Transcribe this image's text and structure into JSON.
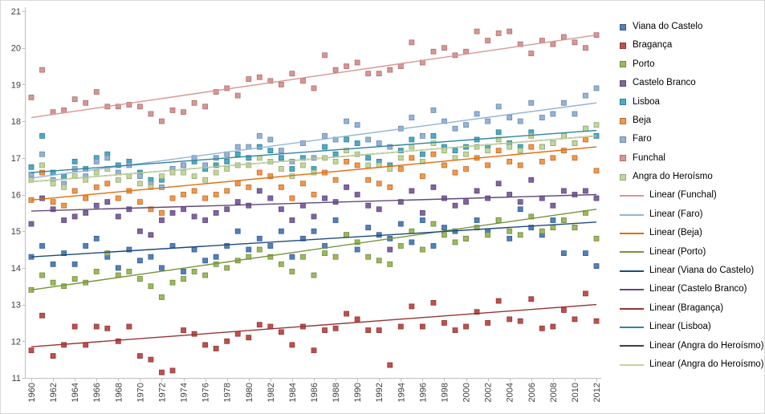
{
  "chart_data": {
    "type": "scatter",
    "title": "",
    "xlabel": "",
    "ylabel": "",
    "grid": false,
    "legend_position": "right",
    "axis_color": "#BFBFBF",
    "axis_label_color": "#404040",
    "x_axis": {
      "min": 1960,
      "max": 2012,
      "tick_step": 2,
      "ticks": [
        1960,
        1962,
        1964,
        1966,
        1968,
        1970,
        1972,
        1974,
        1976,
        1978,
        1980,
        1982,
        1984,
        1986,
        1988,
        1990,
        1992,
        1994,
        1996,
        1998,
        2000,
        2002,
        2004,
        2006,
        2008,
        2010,
        2012
      ]
    },
    "y_axis": {
      "min": 11,
      "max": 21,
      "tick_step": 1,
      "ticks": [
        11,
        12,
        13,
        14,
        15,
        16,
        17,
        18,
        19,
        20,
        21
      ]
    },
    "years": [
      1960,
      1961,
      1962,
      1963,
      1964,
      1965,
      1966,
      1967,
      1968,
      1969,
      1970,
      1971,
      1972,
      1973,
      1974,
      1975,
      1976,
      1977,
      1978,
      1979,
      1980,
      1981,
      1982,
      1983,
      1984,
      1985,
      1986,
      1987,
      1988,
      1989,
      1990,
      1991,
      1992,
      1993,
      1994,
      1995,
      1996,
      1997,
      1998,
      1999,
      2000,
      2001,
      2002,
      2003,
      2004,
      2005,
      2006,
      2007,
      2008,
      2009,
      2010,
      2011,
      2012
    ],
    "series": [
      {
        "name": "Viana do Castelo",
        "fill": "#4F81BD",
        "border": "#385D8A",
        "values": [
          14.3,
          14.6,
          14.1,
          14.4,
          14.1,
          14.6,
          14.8,
          14.3,
          14.0,
          14.5,
          14.2,
          14.3,
          14.0,
          14.6,
          13.9,
          14.5,
          14.2,
          14.3,
          14.6,
          15.0,
          14.5,
          14.8,
          14.6,
          15.0,
          14.3,
          14.8,
          15.0,
          14.6,
          15.3,
          14.9,
          14.5,
          15.1,
          14.9,
          14.8,
          15.2,
          14.7,
          15.3,
          14.6,
          15.1,
          15.0,
          14.8,
          15.3,
          15.0,
          15.3,
          14.8,
          15.6,
          15.1,
          14.9,
          15.3,
          14.4,
          15.1,
          14.4,
          14.05
        ]
      },
      {
        "name": "Bragança",
        "fill": "#C0504D",
        "border": "#8C3836",
        "values": [
          11.75,
          12.7,
          11.6,
          11.9,
          12.4,
          11.9,
          12.4,
          12.35,
          12.0,
          12.4,
          11.6,
          11.5,
          11.15,
          11.2,
          12.3,
          12.2,
          11.9,
          11.8,
          12.0,
          12.2,
          12.1,
          12.45,
          12.4,
          12.25,
          11.9,
          12.4,
          11.75,
          12.3,
          12.35,
          12.75,
          12.6,
          12.3,
          12.3,
          11.35,
          12.4,
          12.95,
          12.4,
          13.05,
          12.5,
          12.3,
          12.4,
          12.8,
          12.5,
          13.1,
          12.6,
          12.55,
          13.15,
          12.35,
          12.4,
          12.85,
          12.6,
          13.3,
          12.55
        ]
      },
      {
        "name": "Porto",
        "fill": "#9BBB59",
        "border": "#71893F",
        "values": [
          13.4,
          13.8,
          13.6,
          13.5,
          13.7,
          13.6,
          13.9,
          14.4,
          13.8,
          13.9,
          13.7,
          13.5,
          13.2,
          13.6,
          13.7,
          13.9,
          13.8,
          14.1,
          14.0,
          14.2,
          14.3,
          14.5,
          14.3,
          14.1,
          13.9,
          14.3,
          13.8,
          14.4,
          14.3,
          14.9,
          14.7,
          14.3,
          14.2,
          14.1,
          14.6,
          15.0,
          14.5,
          15.2,
          14.9,
          14.7,
          14.8,
          15.1,
          14.9,
          15.3,
          15.0,
          14.9,
          15.4,
          15.0,
          15.1,
          15.3,
          15.1,
          15.5,
          14.8
        ]
      },
      {
        "name": "Castelo Branco",
        "fill": "#8064A2",
        "border": "#5C4776",
        "values": [
          15.2,
          15.9,
          15.6,
          15.3,
          15.4,
          15.5,
          15.7,
          15.8,
          15.4,
          15.6,
          15.0,
          14.9,
          15.3,
          15.5,
          15.6,
          15.4,
          15.3,
          15.5,
          15.6,
          15.8,
          15.7,
          16.1,
          15.9,
          15.6,
          15.3,
          15.7,
          15.4,
          15.9,
          15.8,
          16.2,
          16.0,
          15.7,
          15.6,
          14.5,
          15.8,
          16.1,
          15.5,
          16.2,
          15.9,
          15.7,
          15.8,
          16.1,
          15.9,
          16.3,
          16.0,
          15.8,
          16.4,
          15.9,
          15.7,
          16.1,
          16.0,
          16.1,
          15.9
        ]
      },
      {
        "name": "Lisboa",
        "fill": "#4BACC6",
        "border": "#357D91",
        "values": [
          16.75,
          17.6,
          16.6,
          16.5,
          16.9,
          16.7,
          17.0,
          17.1,
          16.8,
          16.9,
          16.6,
          16.4,
          16.4,
          16.7,
          16.8,
          16.9,
          16.7,
          16.8,
          16.9,
          17.1,
          17.0,
          17.3,
          17.2,
          17.0,
          16.7,
          17.0,
          16.7,
          17.3,
          17.1,
          17.5,
          17.4,
          17.0,
          16.9,
          16.8,
          17.2,
          17.5,
          17.1,
          17.6,
          17.3,
          17.2,
          17.3,
          17.5,
          17.3,
          17.7,
          17.4,
          17.3,
          17.7,
          17.3,
          17.4,
          17.6,
          17.4,
          17.8,
          17.6
        ]
      },
      {
        "name": "Beja",
        "fill": "#F79646",
        "border": "#B66D31",
        "values": [
          15.85,
          16.6,
          15.8,
          15.7,
          16.1,
          15.9,
          16.2,
          16.3,
          15.9,
          16.1,
          15.8,
          15.6,
          15.5,
          15.9,
          16.0,
          16.1,
          15.9,
          16.0,
          16.1,
          16.3,
          16.2,
          16.6,
          16.5,
          16.2,
          15.9,
          16.3,
          16.0,
          16.6,
          16.4,
          16.9,
          16.8,
          16.4,
          16.3,
          16.2,
          16.7,
          17.0,
          16.5,
          17.1,
          16.8,
          16.6,
          16.7,
          17.0,
          16.8,
          17.2,
          16.9,
          16.8,
          17.3,
          16.9,
          17.0,
          17.2,
          17.0,
          17.5,
          16.65
        ]
      },
      {
        "name": "Faro",
        "fill": "#95B3D7",
        "border": "#6A88A8",
        "values": [
          16.55,
          17.1,
          16.4,
          16.3,
          16.7,
          16.5,
          16.9,
          17.0,
          16.6,
          16.8,
          16.5,
          16.3,
          16.2,
          16.7,
          16.8,
          17.0,
          16.8,
          17.0,
          17.1,
          17.3,
          17.3,
          17.6,
          17.5,
          17.2,
          16.9,
          17.4,
          17.0,
          17.6,
          17.5,
          18.0,
          17.9,
          17.5,
          17.4,
          17.3,
          17.8,
          18.1,
          17.6,
          18.3,
          18.0,
          17.8,
          17.9,
          18.2,
          18.0,
          18.4,
          18.1,
          18.0,
          18.5,
          18.1,
          18.2,
          18.5,
          18.2,
          18.7,
          18.9
        ]
      },
      {
        "name": "Funchal",
        "fill": "#D99694",
        "border": "#A87170",
        "values": [
          18.65,
          19.4,
          18.25,
          18.3,
          18.6,
          18.5,
          18.8,
          18.4,
          18.4,
          18.45,
          18.4,
          18.2,
          18.0,
          18.3,
          18.25,
          18.5,
          18.4,
          18.8,
          18.9,
          18.7,
          19.15,
          19.2,
          19.1,
          19.0,
          19.3,
          19.1,
          18.9,
          19.8,
          19.4,
          19.5,
          19.6,
          19.3,
          19.3,
          19.4,
          19.5,
          20.15,
          19.6,
          19.9,
          20.0,
          19.8,
          19.9,
          20.45,
          20.2,
          20.4,
          20.45,
          20.1,
          19.85,
          20.2,
          20.1,
          20.3,
          20.15,
          20.0,
          20.35
        ]
      },
      {
        "name": "Angra do Heroísmo",
        "fill": "#C3D69B",
        "border": "#94A973",
        "values": [
          16.4,
          16.8,
          16.3,
          16.2,
          16.5,
          16.4,
          16.6,
          16.7,
          16.4,
          16.5,
          16.3,
          16.2,
          16.5,
          16.6,
          16.6,
          16.5,
          16.4,
          16.6,
          16.7,
          16.8,
          16.8,
          17.0,
          16.9,
          16.7,
          16.5,
          16.8,
          16.6,
          17.0,
          16.9,
          17.2,
          17.1,
          16.8,
          16.8,
          16.7,
          17.0,
          17.3,
          16.9,
          17.4,
          17.2,
          17.0,
          17.1,
          17.3,
          17.2,
          17.5,
          17.3,
          17.2,
          17.6,
          17.3,
          17.4,
          17.6,
          17.4,
          17.8,
          17.9
        ]
      }
    ],
    "trendlines": [
      {
        "label": "Linear (Funchal)",
        "color": "#D99694",
        "x_start": 1960,
        "x_end": 2012,
        "y_start": 18.1,
        "y_end": 20.35
      },
      {
        "label": "Linear (Faro)",
        "color": "#95B3D7",
        "x_start": 1960,
        "x_end": 2012,
        "y_start": 16.45,
        "y_end": 18.5
      },
      {
        "label": "Linear (Beja)",
        "color": "#E36C09",
        "x_start": 1960,
        "x_end": 2012,
        "y_start": 15.85,
        "y_end": 17.3
      },
      {
        "label": "Linear (Porto)",
        "color": "#77933C",
        "x_start": 1960,
        "x_end": 2012,
        "y_start": 13.4,
        "y_end": 15.6
      },
      {
        "label": "Linear (Viana do Castelo)",
        "color": "#1F497D",
        "x_start": 1960,
        "x_end": 2012,
        "y_start": 14.3,
        "y_end": 15.25
      },
      {
        "label": "Linear (Castelo Branco)",
        "color": "#604A7B",
        "x_start": 1960,
        "x_end": 2012,
        "y_start": 15.55,
        "y_end": 16.0
      },
      {
        "label": "Linear (Bragança)",
        "color": "#943634",
        "x_start": 1960,
        "x_end": 2012,
        "y_start": 11.85,
        "y_end": 13.0
      },
      {
        "label": "Linear (Lisboa)",
        "color": "#31859C",
        "x_start": 1960,
        "x_end": 2012,
        "y_start": 16.6,
        "y_end": 17.75
      },
      {
        "label": "Linear (Angra do Heroísmo)",
        "color": "#404040",
        "x_start": 1960,
        "x_end": 2012,
        "y_start": 16.35,
        "y_end": 17.6
      },
      {
        "label": "Linear (Angra do Heroísmo)",
        "color": "#C3D69B",
        "x_start": 1960,
        "x_end": 2012,
        "y_start": 16.35,
        "y_end": 17.6
      }
    ]
  }
}
